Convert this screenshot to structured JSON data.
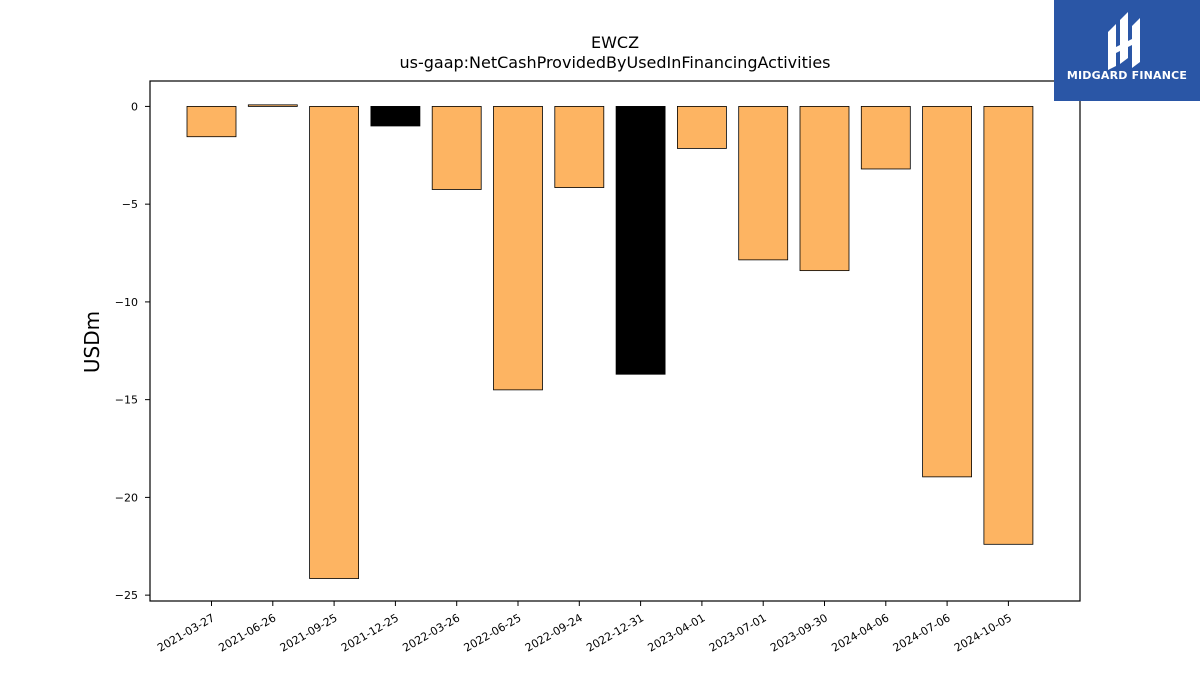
{
  "chart_data": {
    "type": "bar",
    "title": "EWCZ",
    "subtitle": "us-gaap:NetCashProvidedByUsedInFinancingActivities",
    "xlabel": "",
    "ylabel": "USDm",
    "ylim": [
      -25.3,
      1.3
    ],
    "yticks": [
      0,
      -5,
      -10,
      -15,
      -20,
      -25
    ],
    "ytick_labels": [
      "0",
      "−5",
      "−10",
      "−15",
      "−20",
      "−25"
    ],
    "categories": [
      "2021-03-27",
      "2021-06-26",
      "2021-09-25",
      "2021-12-25",
      "2022-03-26",
      "2022-06-25",
      "2022-09-24",
      "2022-12-31",
      "2023-04-01",
      "2023-07-01",
      "2023-09-30",
      "2024-04-06",
      "2024-07-06",
      "2024-10-05"
    ],
    "values": [
      -1.55,
      0.08,
      -24.15,
      -1.0,
      -4.25,
      -14.5,
      -4.15,
      -13.7,
      -2.15,
      -7.85,
      -8.4,
      -3.2,
      -18.95,
      -22.4
    ],
    "highlight": [
      false,
      false,
      false,
      true,
      false,
      false,
      false,
      true,
      false,
      false,
      false,
      false,
      false,
      false
    ],
    "colors": {
      "bar": "#fdb462",
      "highlight": "#000000",
      "edge": "#000000"
    },
    "grid": false,
    "legend": "none"
  },
  "brand": {
    "name": "MIDGARD FINANCE",
    "color": "#2a56a6"
  }
}
